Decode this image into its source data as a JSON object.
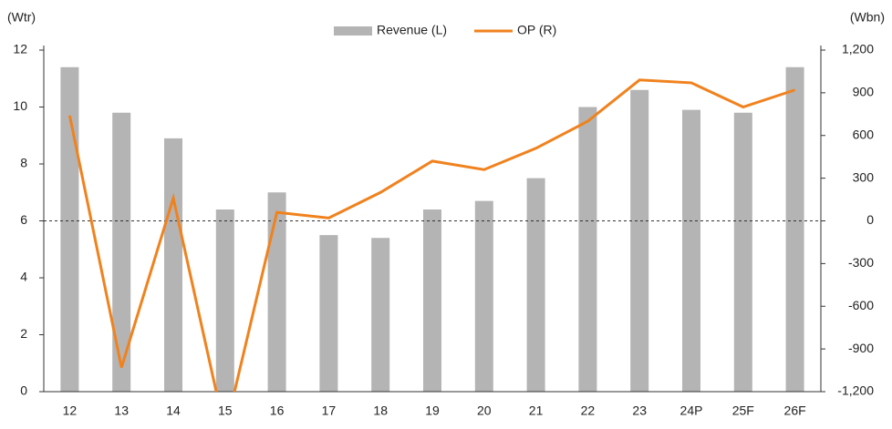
{
  "chart_data": {
    "type": "bar_line",
    "y_label": "(Wtr)",
    "y2_label": "(Wbn)",
    "categories": [
      "12",
      "13",
      "14",
      "15",
      "16",
      "17",
      "18",
      "19",
      "20",
      "21",
      "22",
      "23",
      "24P",
      "25F",
      "26F"
    ],
    "series": [
      {
        "name": "Revenue (L)",
        "type": "bar",
        "color": "#b4b4b4",
        "axis": "y",
        "values": [
          11.4,
          9.8,
          8.9,
          6.4,
          7.0,
          5.5,
          5.4,
          6.4,
          6.7,
          7.5,
          10.0,
          10.6,
          9.9,
          9.8,
          11.4
        ]
      },
      {
        "name": "OP (R)",
        "type": "line",
        "color": "#f0821e",
        "axis": "y2",
        "values": [
          740,
          -1030,
          160,
          -1480,
          60,
          20,
          200,
          420,
          360,
          510,
          700,
          990,
          970,
          800,
          920
        ]
      }
    ],
    "ylim": [
      0,
      12
    ],
    "yticks": [
      0,
      2,
      4,
      6,
      8,
      10,
      12
    ],
    "y2lim": [
      -1200,
      1200
    ],
    "y2ticks": [
      {
        "value": -1200,
        "label": "-1,200"
      },
      -900,
      -600,
      -300,
      0,
      300,
      600,
      900,
      {
        "value": 1200,
        "label": "1,200"
      }
    ],
    "legend": "top"
  }
}
